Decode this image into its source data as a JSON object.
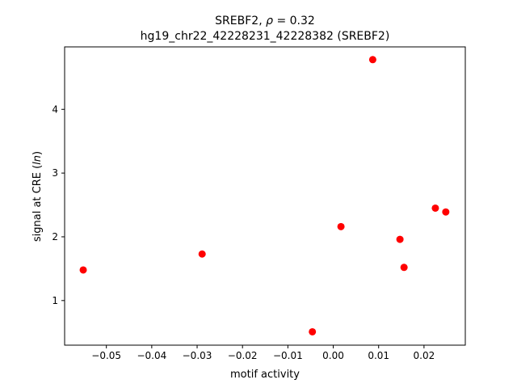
{
  "chart_data": {
    "type": "scatter",
    "title_line1": "SREBF2, ρ = 0.32",
    "title_line2": "hg19_chr22_42228231_42228382 (SREBF2)",
    "xlabel": "motif activity",
    "ylabel": "signal at CRE (ln)",
    "xlim": [
      -0.0592,
      0.0291
    ],
    "ylim": [
      0.3,
      4.98
    ],
    "x_ticks": [
      -0.05,
      -0.04,
      -0.03,
      -0.02,
      -0.01,
      0.0,
      0.01,
      0.02
    ],
    "x_tick_labels": [
      "−0.05",
      "−0.04",
      "−0.03",
      "−0.02",
      "−0.01",
      "0.00",
      "0.01",
      "0.02"
    ],
    "y_ticks": [
      1,
      2,
      3,
      4
    ],
    "y_tick_labels": [
      "1",
      "2",
      "3",
      "4"
    ],
    "grid": false,
    "marker_color": "#ff0000",
    "points": [
      {
        "x": -0.0551,
        "y": 1.48
      },
      {
        "x": -0.0289,
        "y": 1.73
      },
      {
        "x": -0.0046,
        "y": 0.51
      },
      {
        "x": 0.0017,
        "y": 2.16
      },
      {
        "x": 0.0087,
        "y": 4.78
      },
      {
        "x": 0.0147,
        "y": 1.96
      },
      {
        "x": 0.0156,
        "y": 1.52
      },
      {
        "x": 0.0225,
        "y": 2.45
      },
      {
        "x": 0.0248,
        "y": 2.39
      }
    ]
  }
}
